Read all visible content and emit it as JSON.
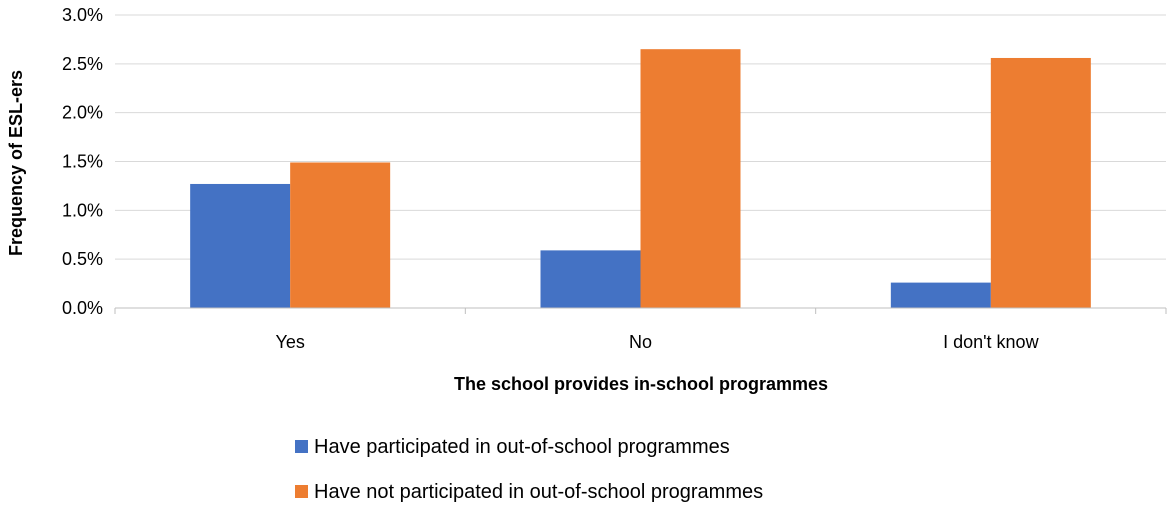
{
  "chart_data": {
    "type": "bar",
    "categories": [
      "Yes",
      "No",
      "I don't know"
    ],
    "series": [
      {
        "name": "Have participated in out-of-school programmes",
        "values": [
          1.27,
          0.59,
          0.26
        ],
        "color": "#4472C4"
      },
      {
        "name": "Have not participated in out-of-school programmes",
        "values": [
          1.49,
          2.65,
          2.56
        ],
        "color": "#ED7D31"
      }
    ],
    "title": "",
    "xlabel": "The school provides in-school programmes",
    "ylabel": "Frequency of ESL-ers",
    "ylim": [
      0,
      3.0
    ],
    "yticks": [
      "0.0%",
      "0.5%",
      "1.0%",
      "1.5%",
      "2.0%",
      "2.5%",
      "3.0%"
    ],
    "ytick_values": [
      0,
      0.5,
      1.0,
      1.5,
      2.0,
      2.5,
      3.0
    ],
    "grid": true,
    "gridline_color": "#D9D9D9",
    "legend_position": "bottom"
  }
}
